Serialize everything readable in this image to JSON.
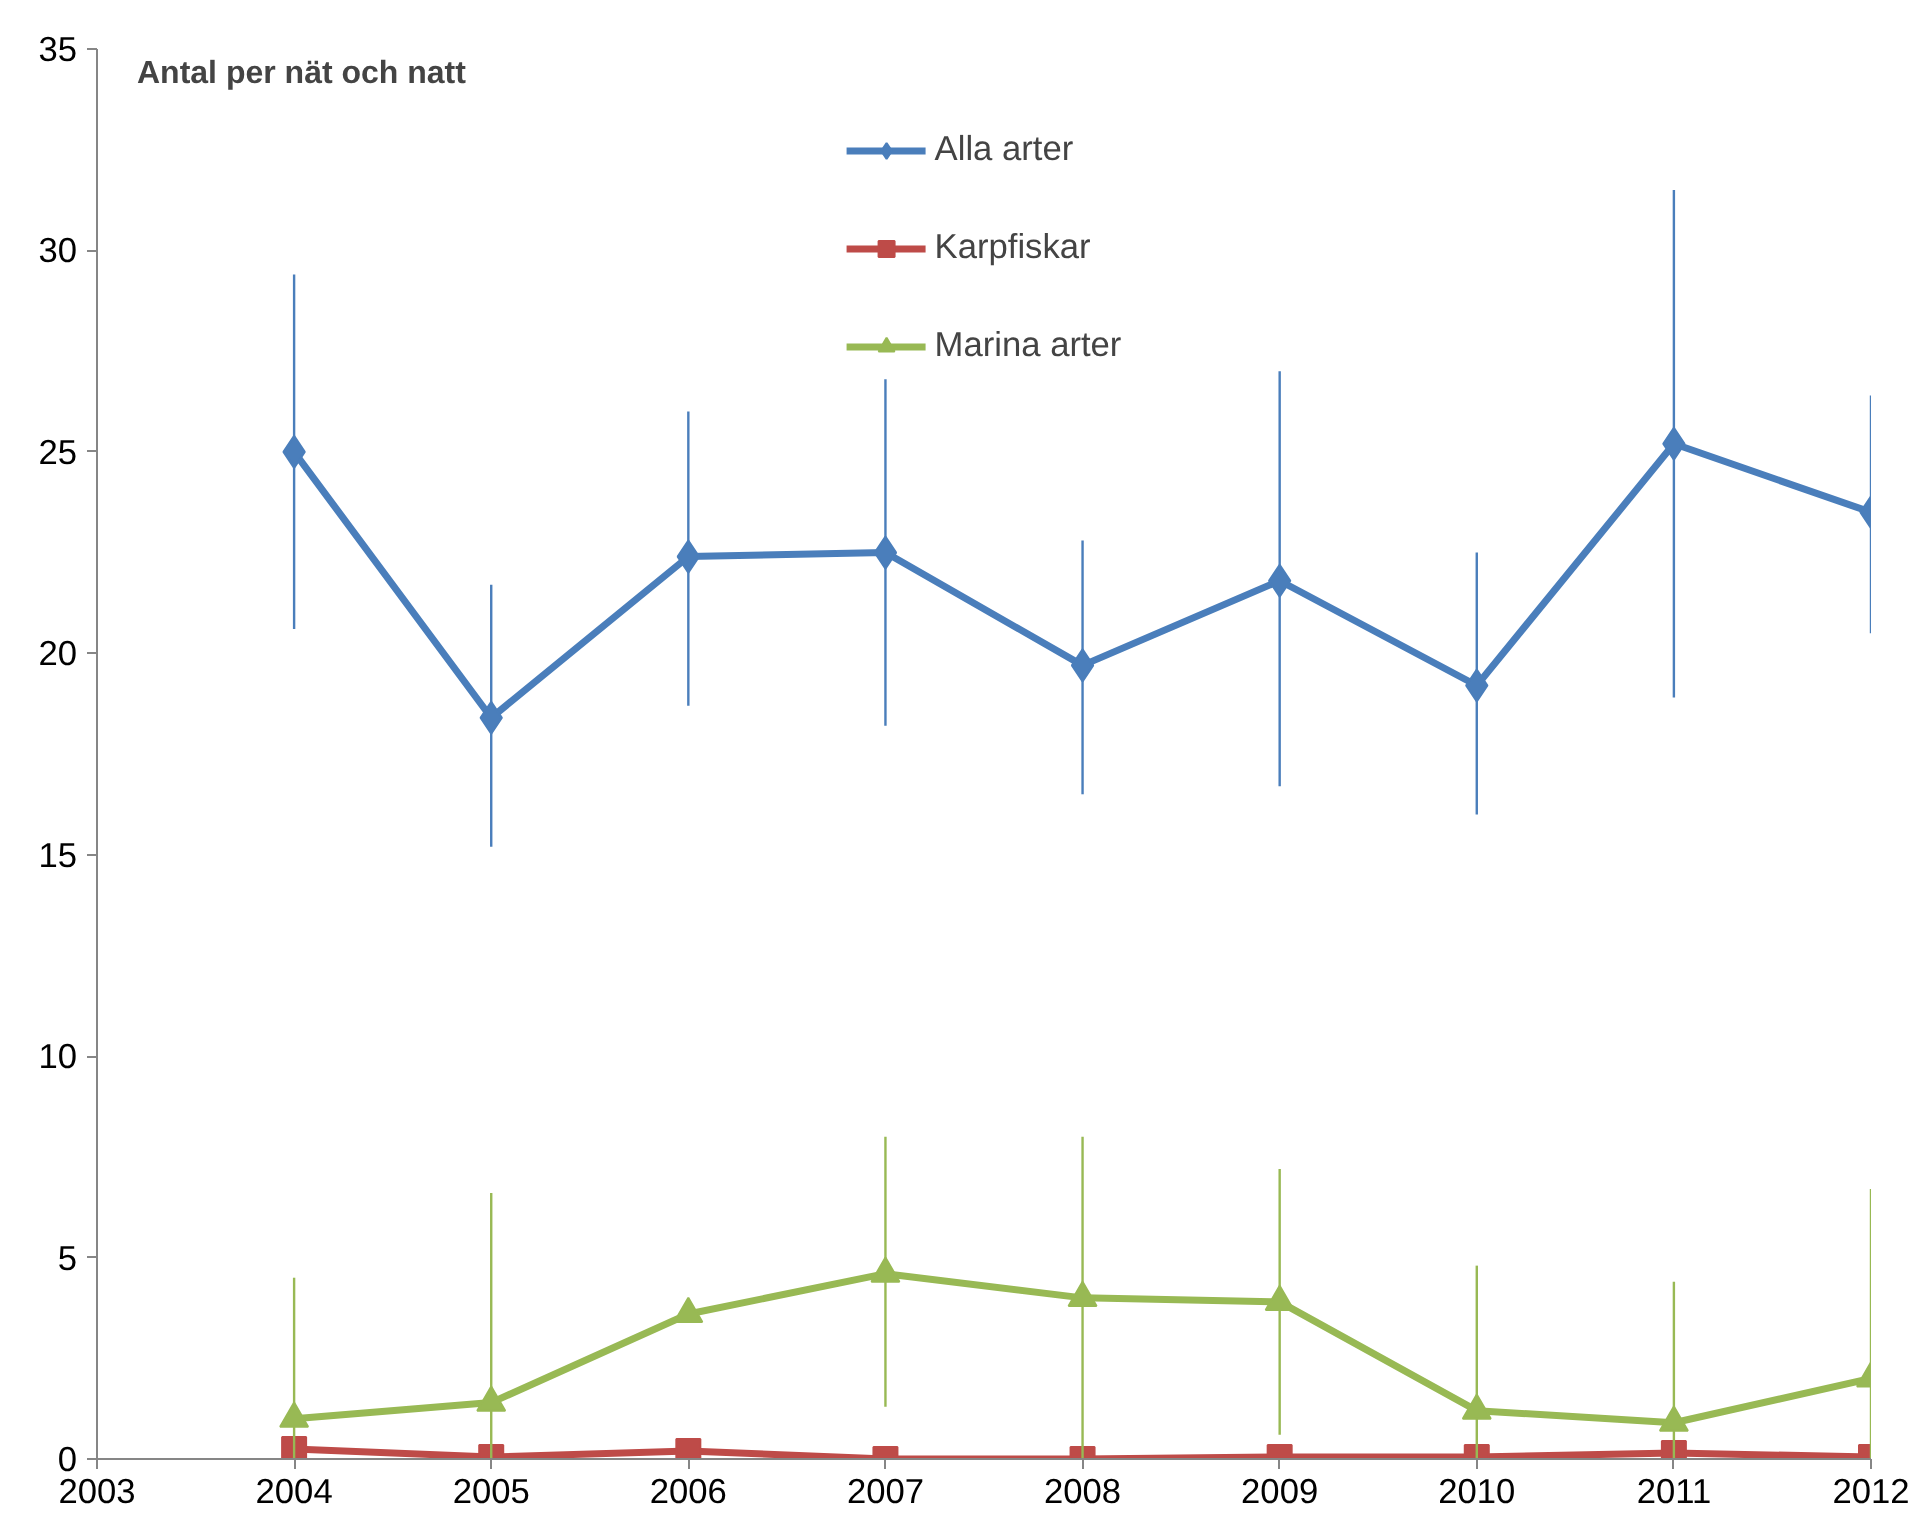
{
  "chart_data": {
    "type": "line",
    "ylabel": "Antal per nät och natt",
    "x": [
      2004,
      2005,
      2006,
      2007,
      2008,
      2009,
      2010,
      2011,
      2012
    ],
    "xlim": [
      2003,
      2012
    ],
    "xticks": [
      2003,
      2004,
      2005,
      2006,
      2007,
      2008,
      2009,
      2010,
      2011,
      2012
    ],
    "ylim": [
      0,
      35
    ],
    "yticks": [
      0,
      5,
      10,
      15,
      20,
      25,
      30,
      35
    ],
    "grid": false,
    "legend": "top",
    "series": [
      {
        "name": "Alla arter",
        "color": "#4a7ebb",
        "marker": "diamond",
        "values": [
          25.0,
          18.4,
          22.4,
          22.5,
          19.7,
          21.8,
          19.2,
          25.2,
          23.5
        ],
        "errors": [
          [
            20.6,
            29.4
          ],
          [
            15.2,
            21.7
          ],
          [
            18.7,
            26.0
          ],
          [
            18.2,
            26.8
          ],
          [
            16.5,
            22.8
          ],
          [
            16.7,
            27.0
          ],
          [
            16.0,
            22.5
          ],
          [
            18.9,
            31.5
          ],
          [
            20.5,
            26.4
          ]
        ]
      },
      {
        "name": "Karpfiskar",
        "color": "#be4b48",
        "marker": "square",
        "values": [
          0.25,
          0.05,
          0.2,
          0.0,
          0.0,
          0.05,
          0.05,
          0.15,
          0.05
        ]
      },
      {
        "name": "Marina arter",
        "color": "#98b954",
        "marker": "triangle",
        "values": [
          1.0,
          1.4,
          3.6,
          4.6,
          4.0,
          3.9,
          1.2,
          0.9,
          2.0
        ],
        "errors": [
          [
            0,
            4.5
          ],
          [
            0,
            6.6
          ],
          null,
          [
            1.3,
            8.0
          ],
          [
            0,
            8.0
          ],
          [
            0.6,
            7.2
          ],
          [
            0,
            4.8
          ],
          [
            0,
            4.4
          ],
          [
            0,
            6.7
          ]
        ]
      }
    ]
  }
}
